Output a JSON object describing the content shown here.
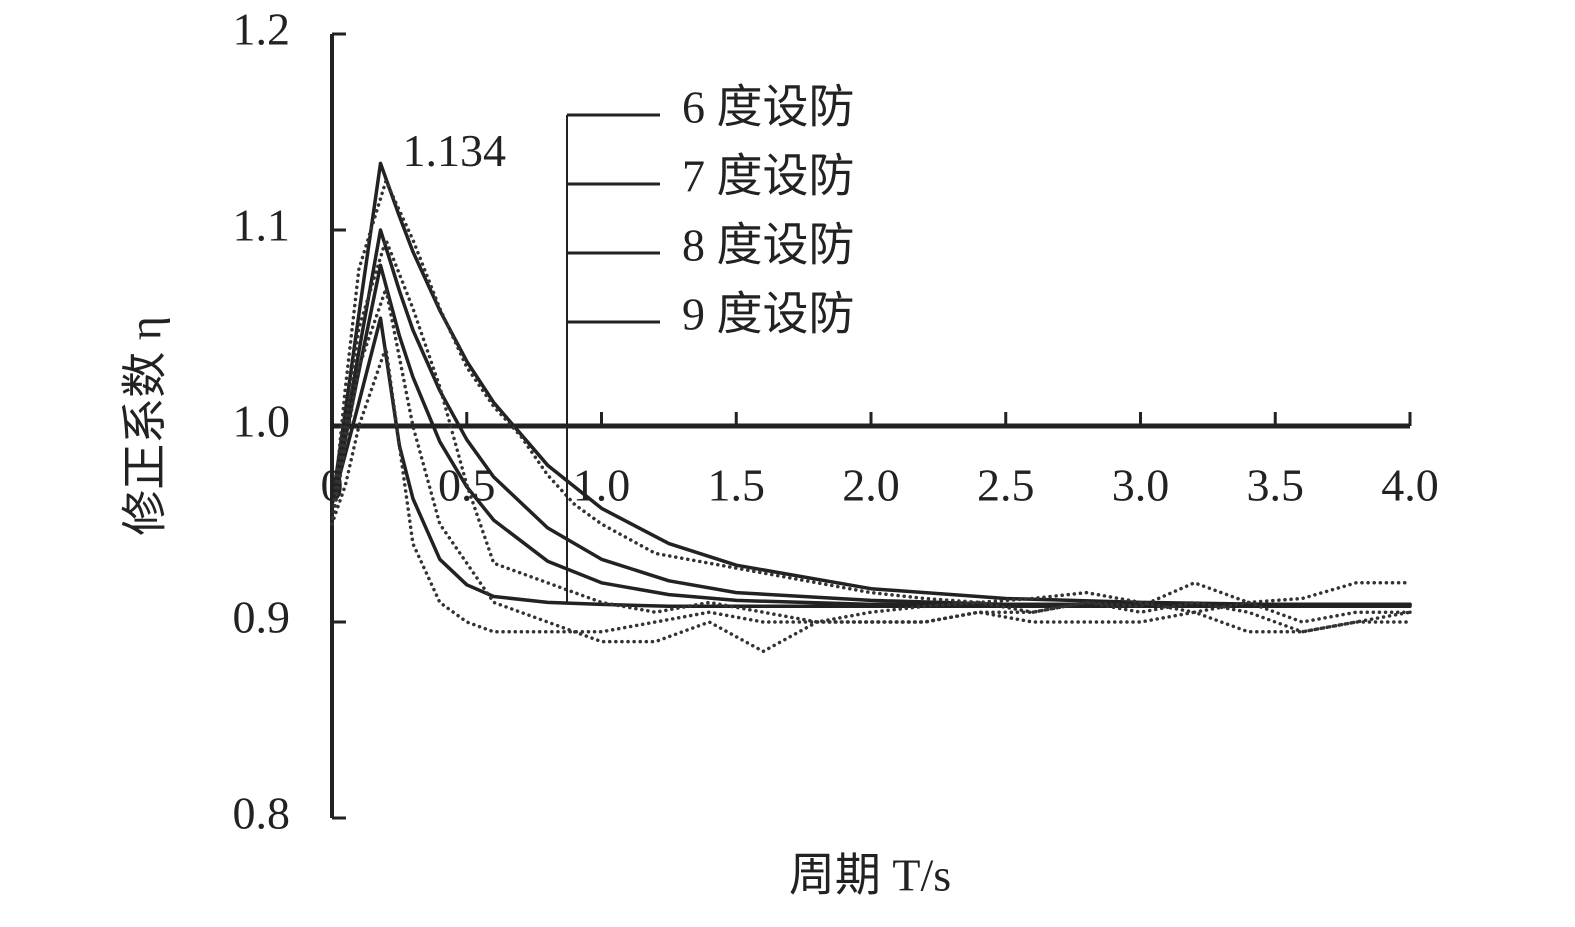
{
  "chart_data": {
    "type": "line",
    "annotation": "1.134",
    "xlabel": "周期 T/s",
    "ylabel": "修正系数 η",
    "xlim": [
      0,
      4
    ],
    "xticks": [
      0,
      0.5,
      {
        "value": 1,
        "label": "1.0"
      },
      1.5,
      {
        "value": 2,
        "label": "2.0"
      },
      2.5,
      {
        "value": 3,
        "label": "3.0"
      },
      3.5,
      {
        "value": 4,
        "label": "4.0"
      }
    ],
    "ylim": [
      0.8,
      1.2
    ],
    "yticks": [
      0.8,
      0.9,
      {
        "value": 1,
        "label": "1.0"
      },
      1.1,
      1.2
    ],
    "series": [
      {
        "name": "6 度设防",
        "color": "#222222",
        "style": "solid",
        "x": [
          0,
          0.05,
          0.1,
          0.18,
          0.25,
          0.3,
          0.4,
          0.5,
          0.6,
          0.8,
          1.0,
          1.25,
          1.5,
          2.0,
          2.5,
          3.0,
          3.5,
          4.0
        ],
        "values": [
          0.96,
          1.008,
          1.057,
          1.134,
          1.107,
          1.089,
          1.059,
          1.033,
          1.012,
          0.98,
          0.958,
          0.94,
          0.929,
          0.917,
          0.912,
          0.91,
          0.909,
          0.909
        ]
      },
      {
        "name": "7 度设防",
        "color": "#222222",
        "style": "solid",
        "x": [
          0,
          0.05,
          0.1,
          0.18,
          0.25,
          0.3,
          0.4,
          0.5,
          0.6,
          0.8,
          1.0,
          1.25,
          1.5,
          2.0,
          2.5,
          3.0,
          3.5,
          4.0
        ],
        "values": [
          0.96,
          0.999,
          1.038,
          1.1,
          1.069,
          1.049,
          1.018,
          0.993,
          0.974,
          0.948,
          0.932,
          0.921,
          0.915,
          0.911,
          0.909,
          0.909,
          0.909,
          0.909
        ]
      },
      {
        "name": "8 度设防",
        "color": "#222222",
        "style": "solid",
        "x": [
          0,
          0.05,
          0.1,
          0.18,
          0.25,
          0.3,
          0.4,
          0.5,
          0.6,
          0.8,
          1.0,
          1.25,
          1.5,
          2.0,
          2.5,
          3.0,
          3.5,
          4.0
        ],
        "values": [
          0.96,
          0.994,
          1.028,
          1.082,
          1.046,
          1.025,
          0.992,
          0.969,
          0.952,
          0.931,
          0.92,
          0.914,
          0.911,
          0.909,
          0.909,
          0.909,
          0.909,
          0.909
        ]
      },
      {
        "name": "9 度设防",
        "color": "#222222",
        "style": "solid",
        "x": [
          0,
          0.05,
          0.1,
          0.18,
          0.25,
          0.3,
          0.4,
          0.5,
          0.6,
          0.8,
          1.0,
          1.25,
          1.5,
          2.0,
          2.5,
          3.0,
          3.5,
          4.0
        ],
        "values": [
          0.96,
          0.986,
          1.012,
          1.055,
          0.99,
          0.963,
          0.932,
          0.919,
          0.913,
          0.91,
          0.909,
          0.908,
          0.908,
          0.908,
          0.908,
          0.908,
          0.908,
          0.908
        ]
      },
      {
        "color": "#333333",
        "style": "dotted",
        "x": [
          0,
          0.05,
          0.1,
          0.2,
          0.3,
          0.4,
          0.5,
          0.6,
          0.7,
          0.8,
          0.9,
          1.0,
          1.2,
          1.4,
          1.6,
          1.8,
          2.0,
          2.2,
          2.4,
          2.6,
          2.8,
          3.0,
          3.2,
          3.4,
          3.6,
          3.8,
          4.0
        ],
        "values": [
          0.95,
          1.02,
          1.08,
          1.125,
          1.095,
          1.06,
          1.03,
          1.01,
          0.995,
          0.975,
          0.96,
          0.95,
          0.935,
          0.93,
          0.925,
          0.92,
          0.915,
          0.912,
          0.91,
          0.912,
          0.915,
          0.91,
          0.905,
          0.91,
          0.912,
          0.92,
          0.92
        ]
      },
      {
        "color": "#333333",
        "style": "dotted",
        "x": [
          0,
          0.05,
          0.1,
          0.2,
          0.3,
          0.4,
          0.5,
          0.6,
          0.7,
          0.8,
          0.9,
          1.0,
          1.2,
          1.4,
          1.6,
          1.8,
          2.0,
          2.2,
          2.4,
          2.6,
          2.8,
          3.0,
          3.2,
          3.4,
          3.6,
          3.8,
          4.0
        ],
        "values": [
          0.95,
          1.0,
          1.05,
          1.095,
          1.06,
          1.02,
          0.97,
          0.93,
          0.925,
          0.92,
          0.915,
          0.91,
          0.905,
          0.91,
          0.905,
          0.9,
          0.905,
          0.908,
          0.91,
          0.905,
          0.91,
          0.908,
          0.92,
          0.91,
          0.9,
          0.905,
          0.905
        ]
      },
      {
        "color": "#333333",
        "style": "dotted",
        "x": [
          0,
          0.05,
          0.1,
          0.2,
          0.3,
          0.4,
          0.5,
          0.6,
          0.7,
          0.8,
          0.9,
          1.0,
          1.2,
          1.4,
          1.6,
          1.8,
          2.0,
          2.2,
          2.4,
          2.6,
          2.8,
          3.0,
          3.2,
          3.4,
          3.6,
          3.8,
          4.0
        ],
        "values": [
          0.95,
          0.99,
          1.03,
          1.07,
          1.0,
          0.95,
          0.93,
          0.91,
          0.905,
          0.9,
          0.895,
          0.89,
          0.89,
          0.9,
          0.885,
          0.9,
          0.9,
          0.9,
          0.905,
          0.905,
          0.91,
          0.905,
          0.91,
          0.905,
          0.895,
          0.9,
          0.9
        ]
      },
      {
        "color": "#333333",
        "style": "dotted",
        "x": [
          0,
          0.05,
          0.1,
          0.2,
          0.3,
          0.4,
          0.5,
          0.6,
          0.7,
          0.8,
          0.9,
          1.0,
          1.2,
          1.4,
          1.6,
          1.8,
          2.0,
          2.2,
          2.4,
          2.6,
          2.8,
          3.0,
          3.2,
          3.4,
          3.6,
          3.8,
          4.0
        ],
        "values": [
          0.95,
          0.97,
          1.0,
          1.04,
          0.94,
          0.91,
          0.9,
          0.895,
          0.895,
          0.895,
          0.895,
          0.895,
          0.9,
          0.905,
          0.9,
          0.9,
          0.9,
          0.9,
          0.905,
          0.9,
          0.9,
          0.9,
          0.905,
          0.895,
          0.895,
          0.9,
          0.905
        ]
      }
    ]
  }
}
